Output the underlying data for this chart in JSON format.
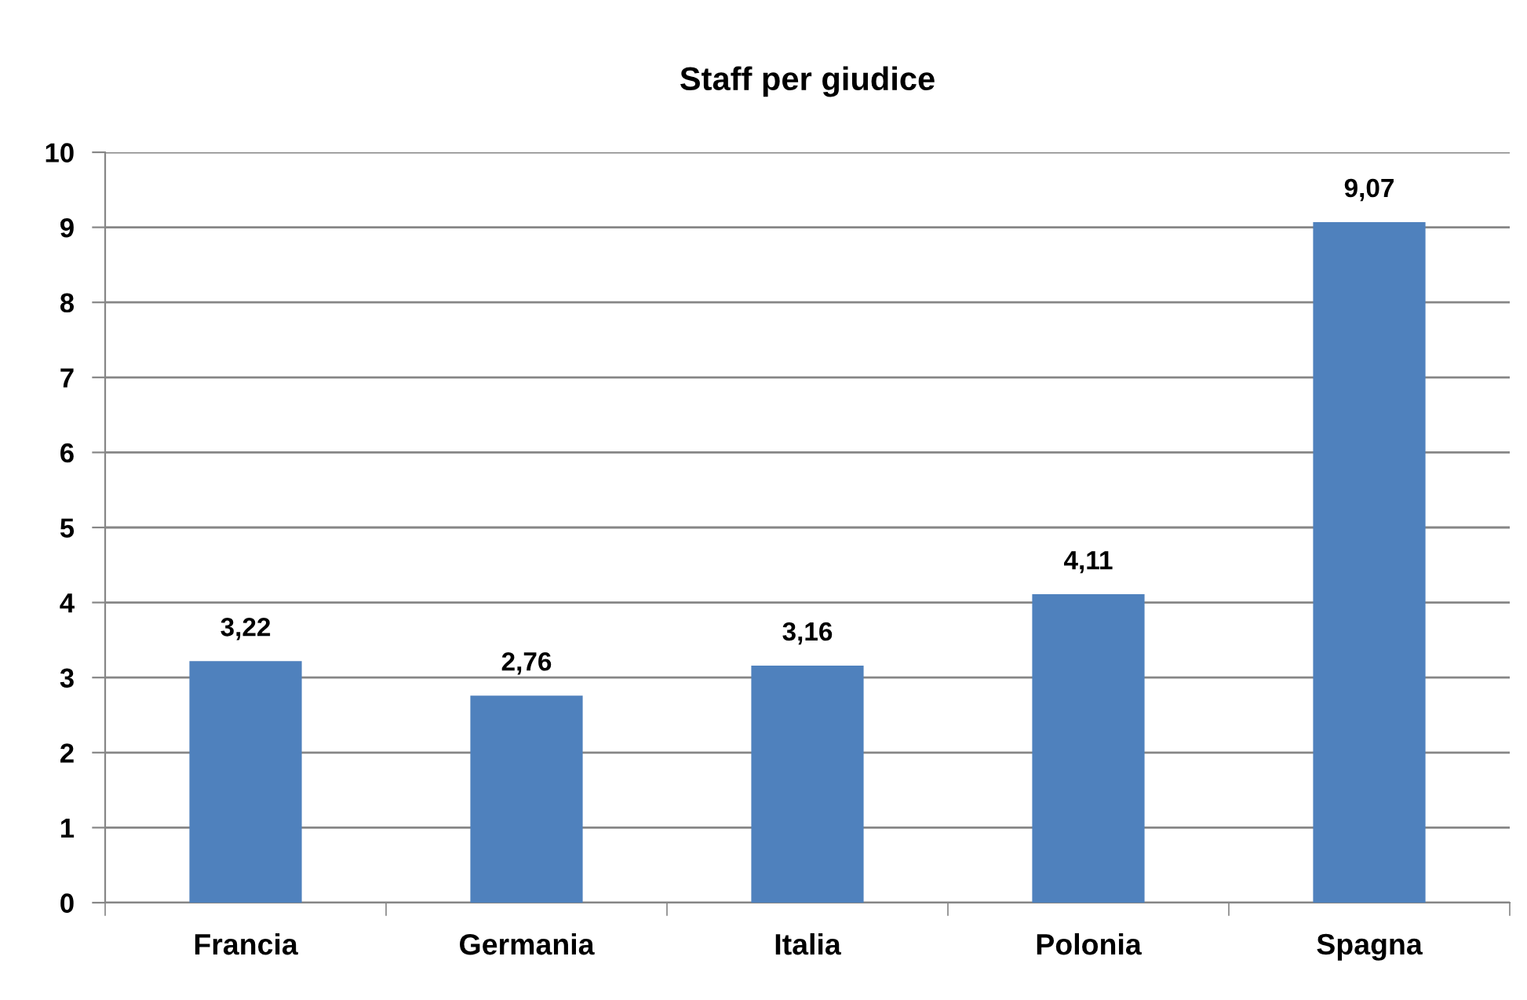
{
  "chart_data": {
    "type": "bar",
    "title": "Staff per giudice",
    "categories": [
      "Francia",
      "Germania",
      "Italia",
      "Polonia",
      "Spagna"
    ],
    "values": [
      3.22,
      2.76,
      3.16,
      4.11,
      9.07
    ],
    "color": "#4f81bd",
    "value_labels": [
      "3,22",
      "2,76",
      "3,16",
      "4,11",
      "9,07"
    ],
    "ylim": [
      0,
      10
    ],
    "yticks": [
      0,
      1,
      2,
      3,
      4,
      5,
      6,
      7,
      8,
      9,
      10
    ],
    "grid": "y",
    "legend": false
  }
}
